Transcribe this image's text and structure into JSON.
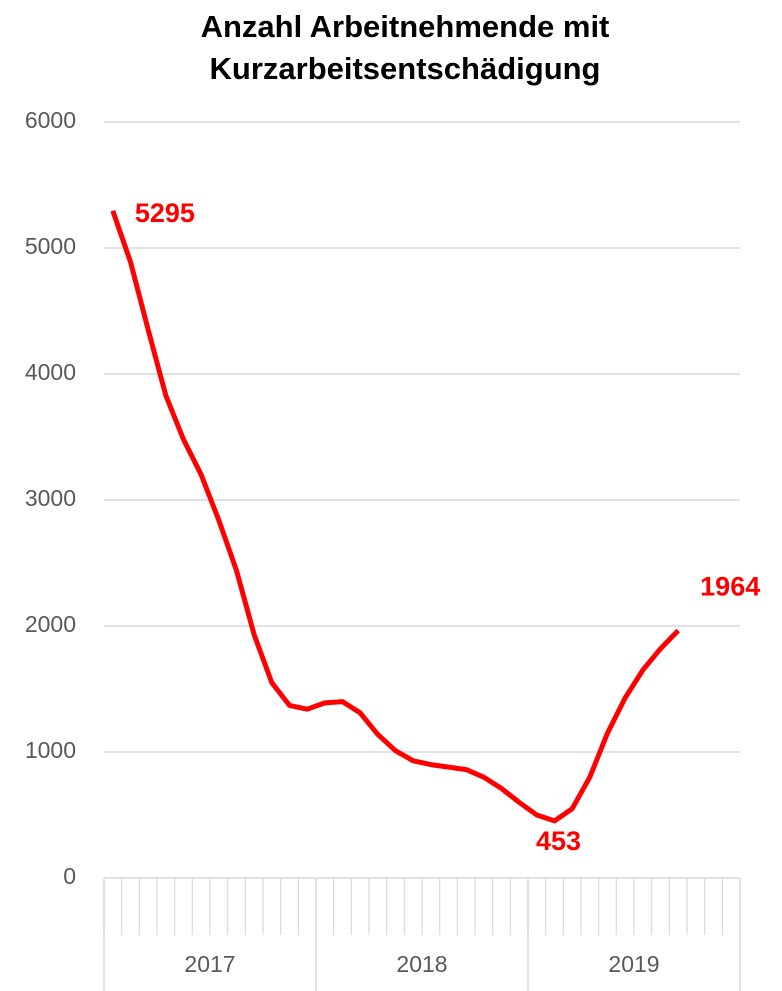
{
  "chart_data": {
    "type": "line",
    "title": "Anzahl Arbeitnehmende mit Kurzarbeitsentschädigung",
    "categories": [
      null,
      null,
      null,
      null,
      null,
      null,
      null,
      null,
      null,
      null,
      null,
      null,
      null,
      null,
      null,
      null,
      null,
      null,
      null,
      null,
      null,
      null,
      null,
      null,
      null,
      null,
      null,
      null,
      null,
      null,
      null,
      null,
      null,
      null,
      null,
      null
    ],
    "x_groups": [
      "2017",
      "2018",
      "2019"
    ],
    "series": [
      {
        "name": "Anzahl Arbeitnehmende",
        "color": "#ff0000",
        "values": [
          5295,
          4890,
          4350,
          3830,
          3480,
          3200,
          2840,
          2440,
          1930,
          1550,
          1370,
          1340,
          1390,
          1400,
          1310,
          1140,
          1010,
          930,
          900,
          880,
          860,
          800,
          710,
          600,
          500,
          453,
          550,
          800,
          1150,
          1430,
          1650,
          1820,
          1964,
          null,
          null,
          null
        ],
        "labeled": [
          0,
          25,
          32
        ]
      }
    ],
    "ylim": [
      0,
      6000
    ],
    "yticks": [
      0,
      1000,
      2000,
      3000,
      4000,
      5000,
      6000
    ],
    "grid": true
  }
}
